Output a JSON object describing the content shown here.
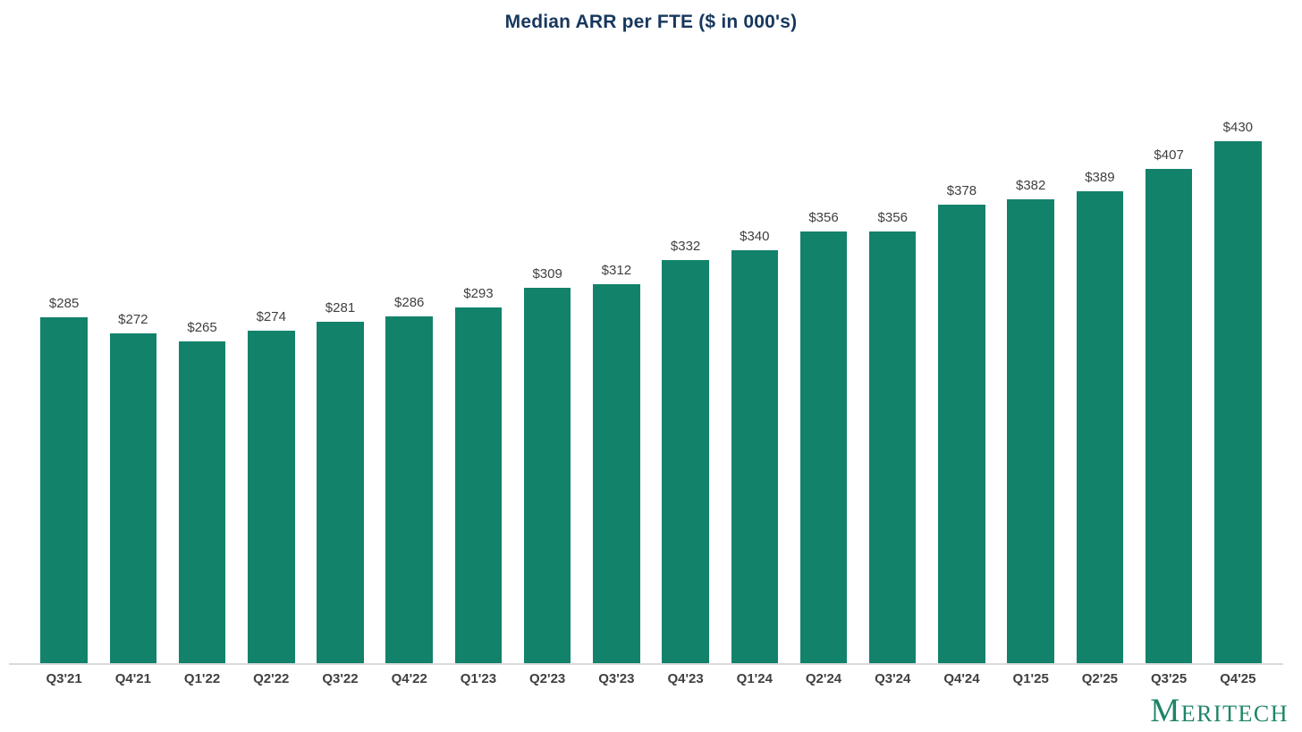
{
  "chart_data": {
    "type": "bar",
    "title": "Median ARR per FTE ($ in 000's)",
    "title_color": "#17375D",
    "categories": [
      "Q3'21",
      "Q4'21",
      "Q1'22",
      "Q2'22",
      "Q3'22",
      "Q4'22",
      "Q1'23",
      "Q2'23",
      "Q3'23",
      "Q4'23",
      "Q1'24",
      "Q2'24",
      "Q3'24",
      "Q4'24",
      "Q1'25",
      "Q2'25",
      "Q3'25",
      "Q4'25"
    ],
    "values": [
      285,
      272,
      265,
      274,
      281,
      286,
      293,
      309,
      312,
      332,
      340,
      356,
      356,
      378,
      382,
      389,
      407,
      430
    ],
    "labels": [
      "$285",
      "$272",
      "$265",
      "$274",
      "$281",
      "$286",
      "$293",
      "$309",
      "$312",
      "$332",
      "$340",
      "$356",
      "$356",
      "$378",
      "$382",
      "$389",
      "$407",
      "$430"
    ],
    "xlabel": "",
    "ylabel": "",
    "ylim": [
      0,
      450
    ],
    "grid": false,
    "legend": "none",
    "bar_color": "#12826B",
    "value_label_color": "#404040",
    "x_label_color": "#404040",
    "axis_line_color": "#DADADA"
  },
  "branding": {
    "logo_text": "Meritech",
    "logo_color": "#1E8467"
  }
}
